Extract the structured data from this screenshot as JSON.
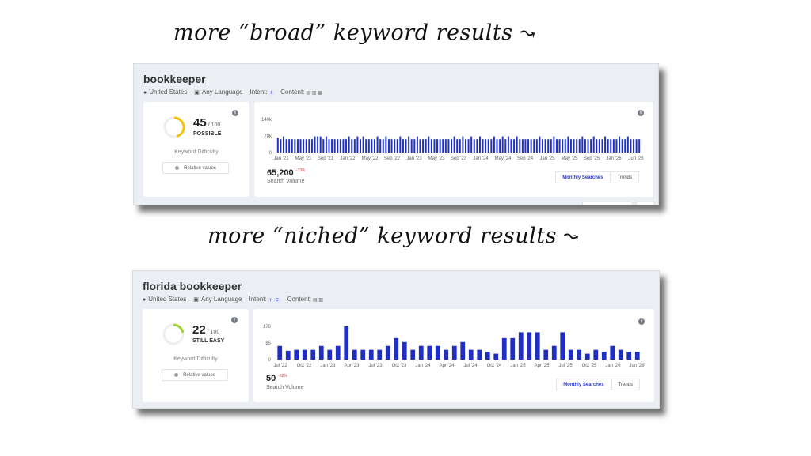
{
  "captions": {
    "top": "more “broad” keyword results",
    "bottom": "more “niched” keyword results"
  },
  "panels": [
    {
      "keyword": "bookkeeper",
      "meta": {
        "country": "United States",
        "language": "Any Language",
        "intent_label": "Intent:",
        "intent_badges": [
          "I"
        ],
        "content_label": "Content:"
      },
      "difficulty": {
        "score": "45",
        "out_of": "/ 100",
        "level": "POSSIBLE",
        "percent": 45,
        "color": "#f4c20d",
        "caption": "Keyword Difficulty",
        "relative_button": "Relative values"
      },
      "volume": {
        "value": "65,200",
        "delta": "-33%",
        "label": "Search Volume",
        "tabs": [
          "Monthly Searches",
          "Trends"
        ],
        "active_tab": "Monthly Searches"
      },
      "chart_data": {
        "type": "bar",
        "color": "#1f2fc4",
        "ylim": [
          0,
          140000
        ],
        "yticks": [
          "140k",
          "70k",
          "0"
        ],
        "ytick_values": [
          140000,
          70000,
          0
        ],
        "xticks": [
          "Jan '21",
          "May '21",
          "Sep '21",
          "Jan '22",
          "May '22",
          "Sep '22",
          "Jan '23",
          "May '23",
          "Sep '23",
          "Jan '24",
          "May '24",
          "Sep '24",
          "Jan '25",
          "May '25",
          "Sep '25",
          "Jan '26",
          "Jun '26"
        ],
        "values": [
          62000,
          56000,
          68000,
          56000,
          56000,
          56000,
          56000,
          56000,
          56000,
          56000,
          56000,
          56000,
          56000,
          68000,
          68000,
          68000,
          56000,
          68000,
          56000,
          56000,
          56000,
          56000,
          56000,
          56000,
          56000,
          68000,
          56000,
          56000,
          68000,
          56000,
          68000,
          56000,
          56000,
          56000,
          56000,
          68000,
          56000,
          56000,
          68000,
          56000,
          56000,
          56000,
          56000,
          68000,
          56000,
          56000,
          68000,
          56000,
          56000,
          68000,
          56000,
          56000,
          56000,
          68000,
          56000,
          56000,
          56000,
          56000,
          56000,
          56000,
          56000,
          56000,
          68000,
          56000,
          56000,
          68000,
          56000,
          56000,
          68000,
          56000,
          56000,
          68000,
          56000,
          56000,
          56000,
          56000,
          68000,
          56000,
          56000,
          68000,
          56000,
          68000,
          56000,
          56000,
          68000,
          56000,
          56000,
          56000,
          56000,
          56000,
          56000,
          56000,
          68000,
          56000,
          56000,
          56000,
          56000,
          68000,
          56000,
          56000,
          56000,
          56000,
          68000,
          56000,
          56000,
          56000,
          56000,
          68000,
          56000,
          56000,
          56000,
          68000,
          56000,
          56000,
          56000,
          68000,
          56000,
          56000,
          56000,
          56000,
          68000,
          56000,
          56000,
          68000,
          56000,
          56000,
          56000,
          56000
        ]
      }
    },
    {
      "keyword": "florida bookkeeper",
      "meta": {
        "country": "United States",
        "language": "Any Language",
        "intent_label": "Intent:",
        "intent_badges": [
          "I",
          "C"
        ],
        "content_label": "Content:"
      },
      "difficulty": {
        "score": "22",
        "out_of": "/ 100",
        "level": "STILL EASY",
        "percent": 22,
        "color": "#9fd33a",
        "caption": "Keyword Difficulty",
        "relative_button": "Relative values"
      },
      "volume": {
        "value": "50",
        "delta": "-62%",
        "label": "Search Volume",
        "tabs": [
          "Monthly Searches",
          "Trends"
        ],
        "active_tab": "Monthly Searches"
      },
      "chart_data": {
        "type": "bar",
        "color": "#1f2fc4",
        "ylim": [
          0,
          170
        ],
        "yticks": [
          "170",
          "85",
          "0"
        ],
        "ytick_values": [
          170,
          85,
          0
        ],
        "xticks": [
          "Jul '22",
          "Oct '22",
          "Jan '23",
          "Apr '23",
          "Jul '23",
          "Oct '23",
          "Jan '24",
          "Apr '24",
          "Jul '24",
          "Oct '24",
          "Jan '25",
          "Apr '25",
          "Jul '25",
          "Oct '25",
          "Jan '26",
          "Jun '26"
        ],
        "values": [
          70,
          45,
          50,
          50,
          50,
          70,
          50,
          70,
          170,
          50,
          50,
          50,
          50,
          70,
          110,
          90,
          50,
          70,
          70,
          70,
          50,
          70,
          90,
          50,
          50,
          40,
          30,
          110,
          110,
          140,
          140,
          140,
          50,
          70,
          140,
          50,
          50,
          30,
          50,
          40,
          70,
          50,
          40,
          40
        ]
      }
    }
  ]
}
